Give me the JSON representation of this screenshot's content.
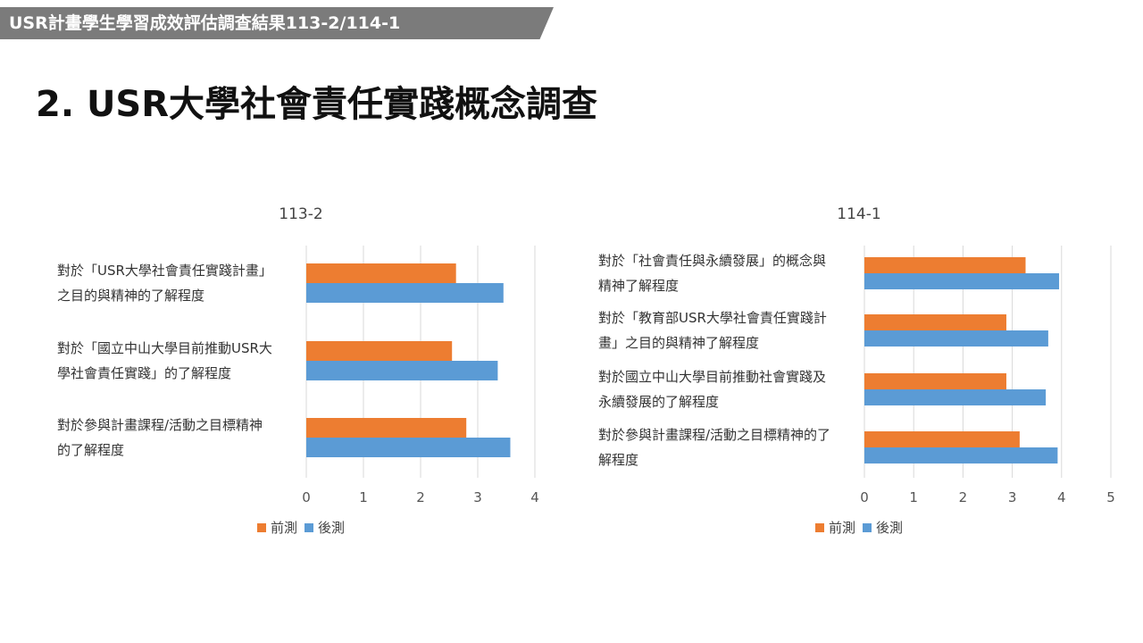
{
  "header": {
    "banner": "USR計畫學生學習成效評估調查結果113-2/114-1",
    "title": "2. USR大學社會責任實踐概念調查"
  },
  "colors": {
    "pre": "#ED7D31",
    "post": "#5B9BD5",
    "grid": "#d9d9d9"
  },
  "chart_data": [
    {
      "type": "bar",
      "orientation": "horizontal",
      "title": "113-2",
      "categories": [
        "對於「USR大學社會責任實踐計畫」之目的與精神的了解程度",
        "對於「國立中山大學目前推動USR大學社會責任實踐」的了解程度",
        "對於參與計畫課程/活動之目標精神的了解程度"
      ],
      "category_lines": [
        [
          "對於「USR大學社會責任實踐計畫」",
          "之目的與精神的了解程度"
        ],
        [
          "對於「國立中山大學目前推動USR大",
          "學社會責任實踐」的了解程度"
        ],
        [
          "對於參與計畫課程/活動之目標精神",
          "的了解程度"
        ]
      ],
      "series": [
        {
          "name": "前測",
          "values": [
            2.62,
            2.55,
            2.8
          ]
        },
        {
          "name": "後測",
          "values": [
            3.45,
            3.35,
            3.57
          ]
        }
      ],
      "xlim": [
        0,
        4
      ],
      "ticks": [
        "0",
        "1",
        "2",
        "3",
        "4"
      ],
      "grid": true,
      "legend": "bottom"
    },
    {
      "type": "bar",
      "orientation": "horizontal",
      "title": "114-1",
      "categories": [
        "對於「社會責任與永續發展」的概念與精神了解程度",
        "對於「教育部USR大學社會責任實踐計畫」之目的與精神了解程度",
        "對於國立中山大學目前推動社會實踐及永續發展的了解程度",
        "對於參與計畫課程/活動之目標精神的了解程度"
      ],
      "category_lines": [
        [
          "對於「社會責任與永續發展」的概念與",
          "精神了解程度"
        ],
        [
          "對於「教育部USR大學社會責任實踐計",
          "畫」之目的與精神了解程度"
        ],
        [
          "對於國立中山大學目前推動社會實踐及",
          "永續發展的了解程度"
        ],
        [
          "對於參與計畫課程/活動之目標精神的了",
          "解程度"
        ]
      ],
      "series": [
        {
          "name": "前測",
          "values": [
            3.27,
            2.88,
            2.88,
            3.15
          ]
        },
        {
          "name": "後測",
          "values": [
            3.95,
            3.73,
            3.68,
            3.92
          ]
        }
      ],
      "xlim": [
        0,
        5
      ],
      "ticks": [
        "0",
        "1",
        "2",
        "3",
        "4",
        "5"
      ],
      "grid": true,
      "legend": "bottom"
    }
  ]
}
